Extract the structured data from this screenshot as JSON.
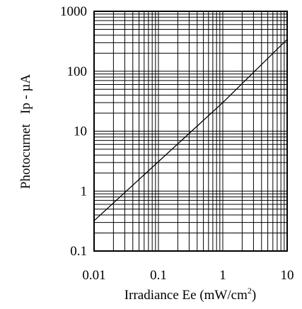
{
  "chart_data": {
    "type": "line",
    "title": "",
    "xlabel": "Irradiance Ee (mW/cm",
    "xlabel_superscript": "2",
    "xlabel_suffix": ")",
    "ylabel": "Photocurnet   Ip - µA",
    "xscale": "log",
    "yscale": "log",
    "xlim": [
      0.01,
      10
    ],
    "ylim": [
      0.1,
      1000
    ],
    "grid": true,
    "x_ticks": [
      0.01,
      0.1,
      1,
      10
    ],
    "x_tick_labels": [
      "0.01",
      "0.1",
      "1",
      "10"
    ],
    "y_ticks": [
      0.1,
      1,
      10,
      100,
      1000
    ],
    "y_tick_labels": [
      "0.1",
      "1",
      "10",
      "100",
      "1000"
    ],
    "series": [
      {
        "x": [
          0.01,
          0.1,
          1,
          10
        ],
        "y": [
          0.32,
          3.1,
          30,
          340
        ]
      }
    ],
    "colors": {
      "line": "#000000",
      "grid": "#000000",
      "background": "#ffffff"
    }
  }
}
